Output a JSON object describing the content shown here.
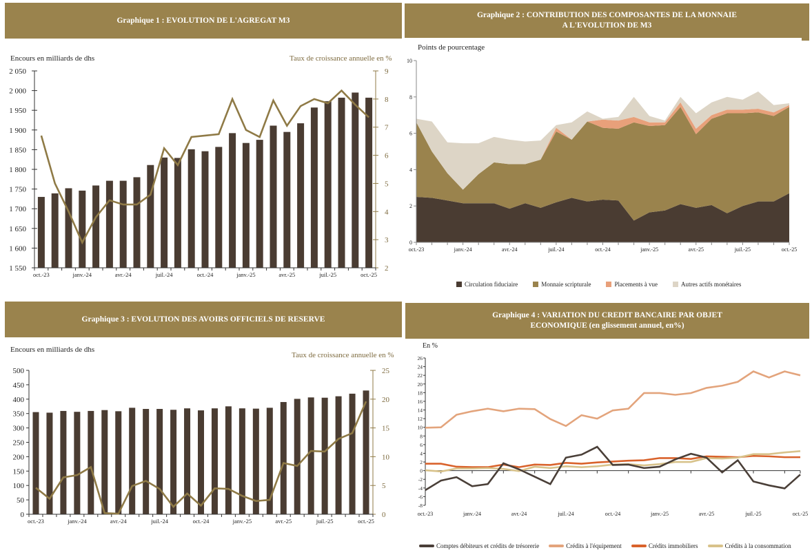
{
  "colors": {
    "banner": "#9a834d",
    "bar": "#4a3c32",
    "line_gold": "#8f7a46",
    "circulation": "#4a3c32",
    "scripturale": "#9a834d",
    "placements": "#e8a07a",
    "autres": "#ddd5c6",
    "comptes": "#4a3f38",
    "equipement": "#e3a47c",
    "immobiliers": "#d9622b",
    "consommation": "#d8c28a"
  },
  "chart_data": [
    {
      "id": "g1",
      "type": "bar",
      "title": "Graphique 1 : EVOLUTION DE L'AGREGAT M3",
      "ylabel": "Encours en milliards de dhs",
      "y2label": "Taux de croissance annuelle en %",
      "ylim": [
        1550,
        2050
      ],
      "yticks": [
        1550,
        1600,
        1650,
        1700,
        1750,
        1800,
        1850,
        1900,
        1950,
        2000,
        2050
      ],
      "ytick_labels": [
        "1 550",
        "1 600",
        "1 650",
        "1 700",
        "1 750",
        "1 800",
        "1 850",
        "1 900",
        "1 950",
        "2 000",
        "2 050"
      ],
      "y2lim": [
        2,
        9
      ],
      "y2ticks": [
        2,
        3,
        4,
        5,
        6,
        7,
        8,
        9
      ],
      "xtick_labels": [
        "oct.-23",
        "janv.-24",
        "avr.-24",
        "juil.-24",
        "oct.-24",
        "janv.-25",
        "avr.-25",
        "juil.-25",
        "oct.-25"
      ],
      "n_points": 25,
      "series": [
        {
          "name": "Encours M3",
          "kind": "bar",
          "axis": "left",
          "values": [
            1730,
            1739,
            1752,
            1746,
            1759,
            1771,
            1771,
            1780,
            1811,
            1830,
            1829,
            1851,
            1846,
            1857,
            1892,
            1867,
            1875,
            1911,
            1895,
            1917,
            1957,
            1973,
            1982,
            1995,
            1982
          ]
        },
        {
          "name": "Taux de croissance annuelle",
          "kind": "line",
          "axis": "right",
          "values": [
            6.7,
            5.0,
            4.0,
            2.9,
            3.8,
            4.4,
            4.25,
            4.25,
            4.6,
            6.25,
            5.65,
            6.65,
            6.7,
            6.75,
            8.0,
            6.9,
            6.65,
            7.95,
            7.05,
            7.75,
            8.0,
            7.85,
            8.3,
            7.8,
            7.35
          ]
        }
      ]
    },
    {
      "id": "g2",
      "type": "area",
      "title_lines": [
        "Graphique 2 : CONTRIBUTION DES COMPOSANTES DE  LA MONNAIE",
        "A L'EVOLUTION DE M3"
      ],
      "ylabel": "Points de pourcentage",
      "ylim": [
        0,
        10
      ],
      "yticks": [
        0,
        2,
        4,
        6,
        8,
        10
      ],
      "xtick_labels": [
        "oct.-23",
        "janv.-24",
        "avr.-24",
        "juil.-24",
        "oct.-24",
        "janv.-25",
        "avr.-25",
        "juil.-25",
        "oct.-25"
      ],
      "n_points": 25,
      "stacked": true,
      "legend": "bottom",
      "series": [
        {
          "name": "Circulation fiduciaire",
          "values": [
            2.5,
            2.45,
            2.3,
            2.15,
            2.15,
            2.15,
            1.85,
            2.15,
            1.9,
            2.2,
            2.45,
            2.25,
            2.35,
            2.3,
            1.2,
            1.65,
            1.75,
            2.1,
            1.9,
            2.05,
            1.6,
            2.0,
            2.25,
            2.25,
            2.7
          ]
        },
        {
          "name": "Monnaie scripturale",
          "values": [
            4.1,
            2.55,
            1.5,
            0.75,
            1.6,
            2.25,
            2.45,
            2.15,
            2.65,
            3.9,
            3.2,
            4.4,
            3.95,
            3.95,
            5.4,
            4.75,
            4.7,
            5.35,
            4.05,
            4.75,
            5.5,
            5.1,
            4.9,
            4.7,
            4.75
          ]
        },
        {
          "name": "Placements à vue",
          "values": [
            0.0,
            0.0,
            0.0,
            0.0,
            0.0,
            0.0,
            0.0,
            0.0,
            0.0,
            0.2,
            0.0,
            0.0,
            0.45,
            0.45,
            0.3,
            0.2,
            0.15,
            0.25,
            0.3,
            0.2,
            0.2,
            0.2,
            0.2,
            0.2,
            0.1
          ]
        },
        {
          "name": "Autres actifs monétaires",
          "values": [
            0.2,
            1.65,
            1.7,
            2.55,
            1.7,
            1.4,
            1.35,
            1.25,
            1.05,
            0.15,
            0.95,
            0.55,
            0.05,
            0.2,
            1.1,
            0.35,
            0.1,
            0.3,
            0.85,
            0.7,
            0.7,
            0.55,
            0.95,
            0.4,
            0.1
          ]
        }
      ]
    },
    {
      "id": "g3",
      "type": "bar",
      "title": "Graphique 3 : EVOLUTION DES AVOIRS OFFICIELS DE RESERVE",
      "ylabel": "Encours en milliards de dhs",
      "y2label": "Taux de croissance annuelle en %",
      "ylim": [
        0,
        500
      ],
      "yticks": [
        0,
        50,
        100,
        150,
        200,
        250,
        300,
        350,
        400,
        450,
        500
      ],
      "y2lim": [
        0,
        25
      ],
      "y2ticks": [
        0,
        5,
        10,
        15,
        20,
        25
      ],
      "xtick_labels": [
        "oct.-23",
        "janv.-24",
        "avr.-24",
        "juil.-24",
        "oct.-24",
        "janv.-25",
        "avr.-25",
        "juil.-25",
        "oct.-25"
      ],
      "n_points": 25,
      "series": [
        {
          "name": "Avoirs officiels de réserve",
          "kind": "bar",
          "axis": "left",
          "values": [
            355,
            353,
            359,
            356,
            359,
            362,
            358,
            370,
            366,
            366,
            363,
            368,
            361,
            368,
            375,
            368,
            367,
            370,
            390,
            401,
            406,
            405,
            410,
            419,
            430
          ]
        },
        {
          "name": "Taux de croissance annuelle",
          "kind": "line",
          "axis": "right",
          "values": [
            4.6,
            2.7,
            6.4,
            6.8,
            8.2,
            0.2,
            0.1,
            4.9,
            5.8,
            4.4,
            1.3,
            3.6,
            1.5,
            4.5,
            4.4,
            3.2,
            2.3,
            2.5,
            8.9,
            8.4,
            11.0,
            10.9,
            13.1,
            14.1,
            19.6
          ]
        }
      ]
    },
    {
      "id": "g4",
      "type": "line",
      "title_lines": [
        "Graphique 4 : VARIATION DU CREDIT BANCAIRE PAR OBJET",
        "ECONOMIQUE (en glissement annuel, en%)"
      ],
      "ylabel": "En %",
      "ylim": [
        -8,
        26
      ],
      "yticks": [
        -8,
        -6,
        -4,
        -2,
        0,
        2,
        4,
        6,
        8,
        10,
        12,
        14,
        16,
        18,
        20,
        22,
        24,
        26
      ],
      "xtick_labels": [
        "oct.-23",
        "janv.-24",
        "avr.-24",
        "juil.-24",
        "oct.-24",
        "janv.-25",
        "avr.-25",
        "juil.-25",
        "oct.-25"
      ],
      "n_points": 25,
      "legend": "bottom",
      "series": [
        {
          "name": "Comptes débiteurs et crédits de trésorerie",
          "values": [
            -4.5,
            -2.3,
            -1.5,
            -3.6,
            -3.1,
            1.7,
            0.3,
            -1.4,
            -3.1,
            3.0,
            3.7,
            5.5,
            1.3,
            1.4,
            0.6,
            0.9,
            2.6,
            3.9,
            3.0,
            -0.4,
            2.4,
            -2.5,
            -3.4,
            -4.1,
            -0.9
          ]
        },
        {
          "name": "Crédits à l'équipement",
          "values": [
            9.9,
            10.0,
            12.9,
            13.7,
            14.3,
            13.7,
            14.3,
            14.2,
            11.9,
            10.3,
            12.8,
            12.0,
            13.9,
            14.3,
            17.9,
            17.9,
            17.5,
            17.9,
            19.1,
            19.6,
            20.5,
            22.9,
            21.5,
            22.9,
            22.0
          ]
        },
        {
          "name": "Crédits immobiliers",
          "values": [
            1.6,
            1.6,
            0.9,
            0.8,
            0.8,
            1.4,
            0.8,
            1.4,
            1.3,
            1.8,
            1.6,
            1.9,
            2.1,
            2.3,
            2.4,
            2.9,
            2.9,
            2.7,
            3.3,
            3.2,
            3.1,
            3.4,
            3.3,
            3.1,
            3.1
          ]
        },
        {
          "name": "Crédits à la consommation",
          "values": [
            0.1,
            -0.2,
            0.5,
            0.5,
            0.6,
            0.4,
            -0.1,
            0.9,
            0.6,
            1.0,
            0.8,
            1.0,
            1.4,
            1.5,
            1.2,
            1.5,
            2.0,
            2.0,
            2.9,
            2.8,
            3.0,
            3.8,
            3.8,
            4.2,
            4.5
          ]
        }
      ]
    }
  ]
}
